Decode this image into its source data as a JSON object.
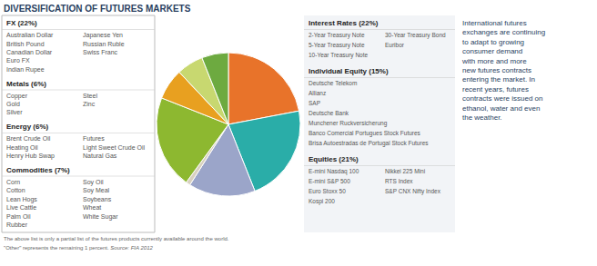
{
  "chart_data": {
    "type": "pie",
    "title": "DIVERSIFICATION OF FUTURES MARKETS",
    "values": [
      22,
      22,
      15,
      1,
      21,
      7,
      6,
      6
    ],
    "colors": [
      "#E8732A",
      "#2AADA8",
      "#9BA5C9",
      "#D8D0C0",
      "#8DB830",
      "#E8A020",
      "#C8D870",
      "#6DAA40"
    ],
    "annotations": {
      "left_sections": [
        {
          "header": "FX (22%)",
          "col1": [
            "Australian Dollar",
            "British Pound",
            "Canadian Dollar",
            "Euro FX",
            "Indian Rupee"
          ],
          "col2": [
            "Japanese Yen",
            "Russian Ruble",
            "Swiss Franc"
          ]
        },
        {
          "header": "Metals (6%)",
          "col1": [
            "Copper",
            "Gold",
            "Silver"
          ],
          "col2": [
            "Steel",
            "Zinc"
          ]
        },
        {
          "header": "Energy (6%)",
          "col1": [
            "Brent Crude Oil",
            "Heating Oil",
            "Henry Hub Swap"
          ],
          "col2": [
            "Futures",
            "Light Sweet Crude Oil",
            "Natural Gas"
          ]
        },
        {
          "header": "Commodities (7%)",
          "col1": [
            "Corn",
            "Cotton",
            "Lean Hogs",
            "Live Cattle",
            "Palm Oil",
            "Rubber"
          ],
          "col2": [
            "Soy Oil",
            "Soy Meal",
            "Soybeans",
            "Wheat",
            "White Sugar"
          ]
        }
      ],
      "right_sections": [
        {
          "header": "Interest Rates (22%)",
          "col1": [
            "2-Year Treasury Note",
            "5-Year Treasury Note",
            "10-Year Treasury Note"
          ],
          "col2": [
            "30-Year Treasury Bond",
            "Euribor"
          ]
        },
        {
          "header": "Individual Equity (15%)",
          "col1": [
            "Deutsche Telekom",
            "Allianz",
            "SAP",
            "Deutsche Bank",
            "Munchener Ruckversicherung",
            "Banco Comercial Portugues Stock Futures",
            "Brisa Autoestradas de Portugal Stock Futures"
          ],
          "col2": []
        },
        {
          "header": "Equities (21%)",
          "col1": [
            "E-mini Nasdaq 100",
            "E-mini S&P 500",
            "Euro Stoxx 50",
            "Kospi 200"
          ],
          "col2": [
            "Nikkei 225 Mini",
            "RTS Index",
            "S&P CNX Nifty Index"
          ]
        }
      ],
      "footnotes": [
        "The above list is only a partial list of the futures products currently available around the world.",
        "\"Other\" represents the remaining 1 percent.",
        "Source: FIA 2012"
      ],
      "description": "International futures\nexchanges are continuing\nto adapt to growing\nconsumer demand\nwith more and more\nnew futures contracts\nentering the market. In\nrecent years, futures\ncontracts were issued on\nethanol, water and even\nthe weather."
    }
  }
}
